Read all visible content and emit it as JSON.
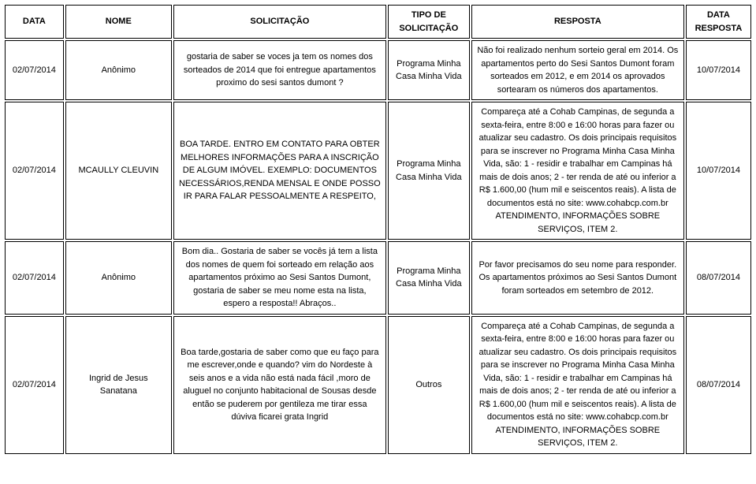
{
  "headers": {
    "data": "DATA",
    "nome": "NOME",
    "solicitacao": "SOLICITAÇÃO",
    "tipo": "TIPO DE SOLICITAÇÃO",
    "resposta": "RESPOSTA",
    "dataResposta": "DATA RESPOSTA"
  },
  "rows": [
    {
      "data": "02/07/2014",
      "nome": "Anônimo",
      "solicitacao": "gostaria de saber se voces ja tem os nomes dos sorteados de 2014 que foi entregue apartamentos proximo do sesi santos dumont ?",
      "tipo": "Programa Minha Casa Minha Vida",
      "resposta": "Não foi realizado nenhum sorteio geral em 2014. Os apartamentos perto do Sesi Santos Dumont foram sorteados em 2012, e em 2014 os aprovados sortearam os números dos apartamentos.",
      "dataResposta": "10/07/2014"
    },
    {
      "data": "02/07/2014",
      "nome": "MCAULLY CLEUVIN",
      "solicitacao": "BOA TARDE. ENTRO EM CONTATO PARA OBTER MELHORES INFORMAÇÕES PARA A INSCRIÇÃO DE ALGUM IMÓVEL. EXEMPLO: DOCUMENTOS NECESSÁRIOS,RENDA MENSAL E ONDE POSSO IR PARA FALAR PESSOALMENTE A RESPEITO,",
      "tipo": "Programa Minha Casa Minha Vida",
      "resposta": "Compareça até a Cohab Campinas, de segunda a sexta-feira, entre 8:00 e 16:00 horas para fazer ou atualizar seu cadastro. Os dois principais requisitos para se inscrever no Programa Minha Casa Minha Vida, são: 1 - residir e trabalhar em Campinas há mais de dois anos; 2 - ter renda de até ou inferior a R$ 1.600,00 (hum mil e seiscentos reais). A lista de documentos está no site: www.cohabcp.com.br ATENDIMENTO, INFORMAÇÕES SOBRE SERVIÇOS, ITEM 2.",
      "dataResposta": "10/07/2014"
    },
    {
      "data": "02/07/2014",
      "nome": "Anônimo",
      "solicitacao": "Bom dia.. Gostaria de saber se vocês já tem a lista dos nomes de quem foi sorteado em relação aos apartamentos próximo ao Sesi Santos Dumont, gostaria de saber se meu nome esta na lista, espero a resposta!! Abraços..",
      "tipo": "Programa Minha Casa Minha Vida",
      "resposta": "Por favor precisamos do seu nome para responder. Os apartamentos próximos ao Sesi Santos Dumont foram sorteados em setembro de 2012.",
      "dataResposta": "08/07/2014"
    },
    {
      "data": "02/07/2014",
      "nome": "Ingrid de Jesus Sanatana",
      "solicitacao": "Boa tarde,gostaria de saber como que eu faço para me escrever,onde e quando? vim do Nordeste à seis anos e a vida não está nada fácil ,moro de aluguel no conjunto habitacional de Sousas desde então se puderem por gentileza me tirar essa dúviva ficarei grata Ingrid",
      "tipo": "Outros",
      "resposta": "Compareça até a Cohab Campinas, de segunda a sexta-feira, entre 8:00 e 16:00 horas para fazer ou atualizar seu cadastro. Os dois principais requisitos para se inscrever no Programa Minha Casa Minha Vida, são: 1 - residir e trabalhar em Campinas há mais de dois anos; 2 - ter renda de até ou inferior a R$ 1.600,00 (hum mil e seiscentos reais). A lista de documentos está no site: www.cohabcp.com.br ATENDIMENTO, INFORMAÇÕES SOBRE SERVIÇOS, ITEM 2.",
      "dataResposta": "08/07/2014"
    }
  ]
}
